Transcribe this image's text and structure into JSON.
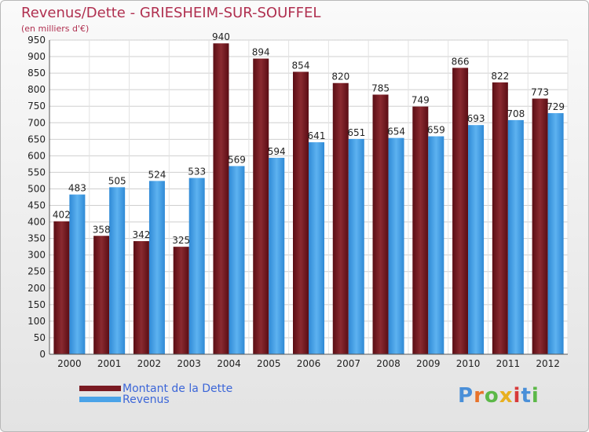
{
  "title": "Revenus/Dette - GRIESHEIM-SUR-SOUFFEL",
  "subtitle": "(en milliers d'€)",
  "colors": {
    "dette": "#7a1a22",
    "revenus": "#4aa3e8",
    "title": "#b03050",
    "legend_text": "#3c66d8"
  },
  "legend": {
    "dette": "Montant de la Dette",
    "revenus": "Revenus"
  },
  "logo": {
    "text": "Proxiti",
    "letter_colors": [
      "#4a8fd8",
      "#e8732a",
      "#5cb848",
      "#e8b020",
      "#d83a3a",
      "#4a8fd8",
      "#5cb848"
    ]
  },
  "chart_data": {
    "type": "bar",
    "categories": [
      "2000",
      "2001",
      "2002",
      "2003",
      "2004",
      "2005",
      "2006",
      "2007",
      "2008",
      "2009",
      "2010",
      "2011",
      "2012"
    ],
    "series": [
      {
        "name": "Montant de la Dette",
        "values": [
          402,
          358,
          342,
          325,
          940,
          894,
          854,
          820,
          785,
          749,
          866,
          822,
          773
        ]
      },
      {
        "name": "Revenus",
        "values": [
          483,
          505,
          524,
          533,
          569,
          594,
          641,
          651,
          654,
          659,
          693,
          708,
          729
        ]
      }
    ],
    "ylim": [
      0,
      950
    ],
    "yticks": [
      0,
      50,
      100,
      150,
      200,
      250,
      300,
      350,
      400,
      450,
      500,
      550,
      600,
      650,
      700,
      750,
      800,
      850,
      900,
      950
    ],
    "grid": true,
    "legend_position": "bottom-left",
    "xlabel": "",
    "ylabel": ""
  }
}
